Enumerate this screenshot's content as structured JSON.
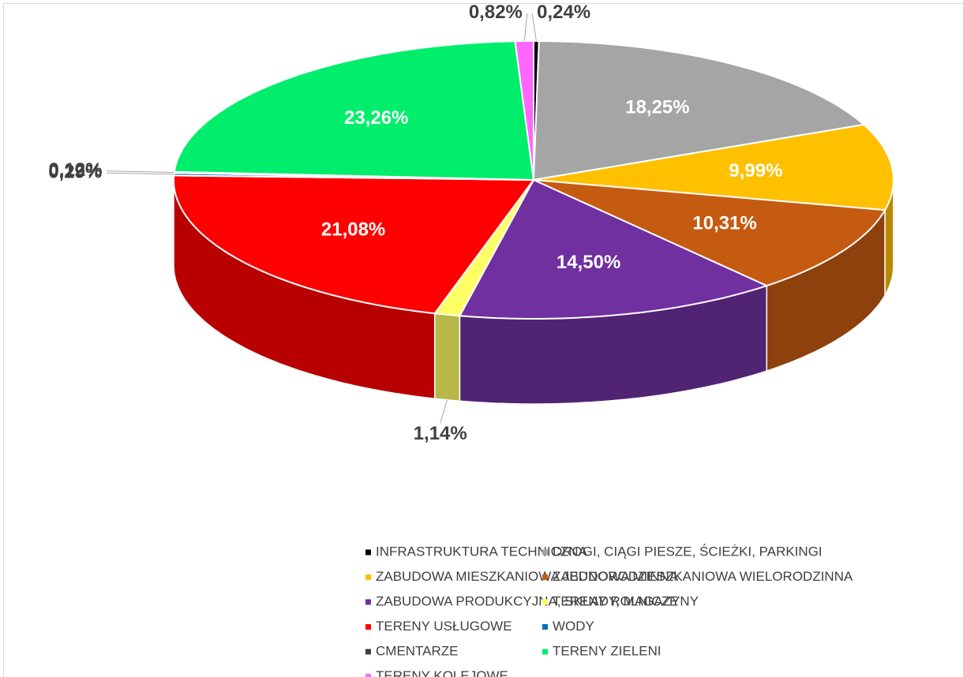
{
  "chart_data": {
    "type": "pie3d",
    "categories": [
      "INFRASTRUKTURA TECHNICZNA",
      "DROGI, CIĄGI PIESZE, ŚCIEŻKI, PARKINGI",
      "ZABUDOWA MIESZKANIOWA JEDNORODZINNA",
      "ZABUDOWA MIESZKANIOWA WIELORODZINNA",
      "ZABUDOWA PRODUKCYJNA, SKŁADY, MAGAZYNY",
      "TERENY ROLNICZE",
      "TERENY USŁUGOWE",
      "WODY",
      "CMENTARZE",
      "TERENY ZIELENI",
      "TERENY KOLEJOWE"
    ],
    "values": [
      0.24,
      18.25,
      9.99,
      10.31,
      14.5,
      1.14,
      21.08,
      0.29,
      0.12,
      23.26,
      0.82
    ],
    "value_labels": [
      "0,24%",
      "18,25%",
      "9,99%",
      "10,31%",
      "14,50%",
      "1,14%",
      "21,08%",
      "0,29%",
      "0,12%",
      "23,26%",
      "0,82%"
    ],
    "colors": [
      "#000000",
      "#a5a5a5",
      "#ffc000",
      "#c55a11",
      "#7030a0",
      "#ffff66",
      "#ff0000",
      "#0070c0",
      "#404040",
      "#00ee6c",
      "#ff66ff"
    ],
    "legend": "bottom"
  }
}
